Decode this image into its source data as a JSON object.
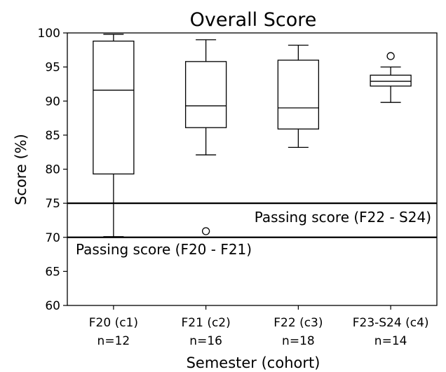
{
  "chart_data": {
    "type": "box",
    "title": "Overall Score",
    "xlabel": "Semester (cohort)",
    "ylabel": "Score (%)",
    "ylim": [
      60,
      100
    ],
    "yticks": [
      60,
      65,
      70,
      75,
      80,
      85,
      90,
      95,
      100
    ],
    "grid": false,
    "categories": [
      {
        "name": "F20 (c1)",
        "n_label": "n=12"
      },
      {
        "name": "F21 (c2)",
        "n_label": "n=16"
      },
      {
        "name": "F22 (c3)",
        "n_label": "n=18"
      },
      {
        "name": "F23-S24 (c4)",
        "n_label": "n=14"
      }
    ],
    "boxes": [
      {
        "whisker_low": 70.1,
        "q1": 79.3,
        "median": 91.6,
        "q3": 98.8,
        "whisker_high": 99.8,
        "outliers": []
      },
      {
        "whisker_low": 82.1,
        "q1": 86.1,
        "median": 89.3,
        "q3": 95.8,
        "whisker_high": 99.0,
        "outliers": [
          70.9
        ]
      },
      {
        "whisker_low": 83.2,
        "q1": 85.9,
        "median": 89.0,
        "q3": 96.0,
        "whisker_high": 98.2,
        "outliers": []
      },
      {
        "whisker_low": 89.8,
        "q1": 92.2,
        "median": 92.9,
        "q3": 93.8,
        "whisker_high": 95.0,
        "outliers": [
          96.6
        ]
      }
    ],
    "reference_lines": [
      {
        "y": 75,
        "label": "Passing score (F22 - S24)"
      },
      {
        "y": 70,
        "label": "Passing score (F20 - F21)"
      }
    ]
  }
}
